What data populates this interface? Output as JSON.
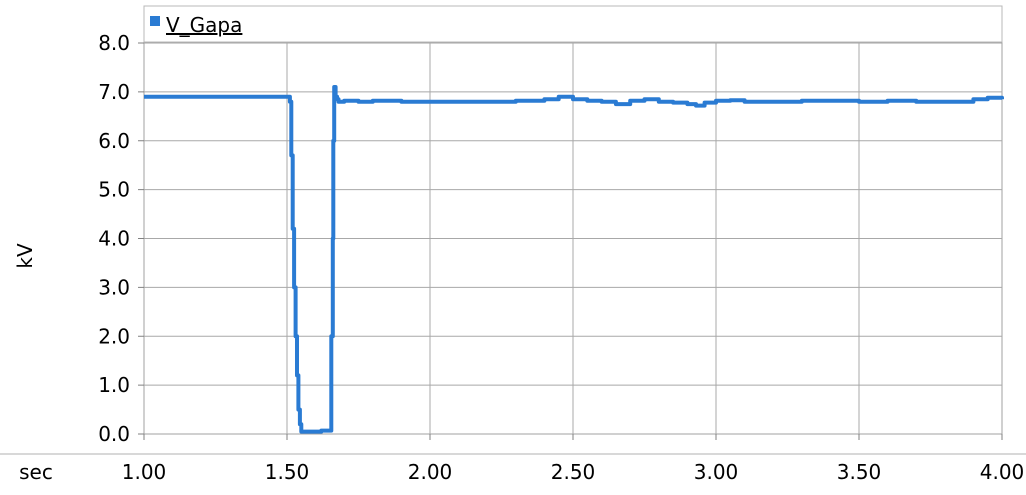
{
  "chart_data": {
    "type": "line",
    "title": "",
    "xlabel": "sec",
    "ylabel": "kV",
    "xlim": [
      1.0,
      4.0
    ],
    "ylim": [
      0.0,
      8.0
    ],
    "x_ticks": [
      1.0,
      1.5,
      2.0,
      2.5,
      3.0,
      3.5,
      4.0
    ],
    "x_tick_labels": [
      "1.00",
      "1.50",
      "2.00",
      "2.50",
      "3.00",
      "3.50",
      "4.00"
    ],
    "y_ticks": [
      0,
      1,
      2,
      3,
      4,
      5,
      6,
      7,
      8
    ],
    "y_tick_labels": [
      "0.0",
      "1.0",
      "2.0",
      "3.0",
      "4.0",
      "5.0",
      "6.0",
      "7.0",
      "8.0"
    ],
    "grid": true,
    "legend_position": "top-left",
    "series": [
      {
        "name": "V_Gapa",
        "color": "#2a7bd3",
        "x": [
          1.0,
          1.5,
          1.51,
          1.515,
          1.52,
          1.525,
          1.53,
          1.535,
          1.54,
          1.545,
          1.55,
          1.555,
          1.56,
          1.6,
          1.62,
          1.65,
          1.655,
          1.66,
          1.662,
          1.665,
          1.67,
          1.675,
          1.68,
          1.7,
          1.75,
          1.8,
          1.9,
          2.0,
          2.1,
          2.2,
          2.3,
          2.4,
          2.45,
          2.5,
          2.55,
          2.6,
          2.65,
          2.7,
          2.75,
          2.8,
          2.85,
          2.9,
          2.93,
          2.96,
          3.0,
          3.05,
          3.1,
          3.2,
          3.3,
          3.4,
          3.5,
          3.6,
          3.7,
          3.8,
          3.9,
          3.95,
          4.0
        ],
        "y": [
          6.9,
          6.9,
          6.8,
          5.7,
          4.2,
          3.0,
          2.0,
          1.2,
          0.5,
          0.2,
          0.05,
          0.05,
          0.05,
          0.05,
          0.07,
          0.07,
          2.0,
          4.0,
          6.0,
          7.1,
          6.9,
          6.85,
          6.8,
          6.82,
          6.8,
          6.82,
          6.8,
          6.8,
          6.8,
          6.8,
          6.82,
          6.85,
          6.9,
          6.85,
          6.82,
          6.8,
          6.75,
          6.82,
          6.85,
          6.8,
          6.78,
          6.75,
          6.72,
          6.78,
          6.82,
          6.83,
          6.8,
          6.8,
          6.82,
          6.82,
          6.8,
          6.82,
          6.8,
          6.8,
          6.85,
          6.88,
          6.85
        ]
      }
    ]
  }
}
